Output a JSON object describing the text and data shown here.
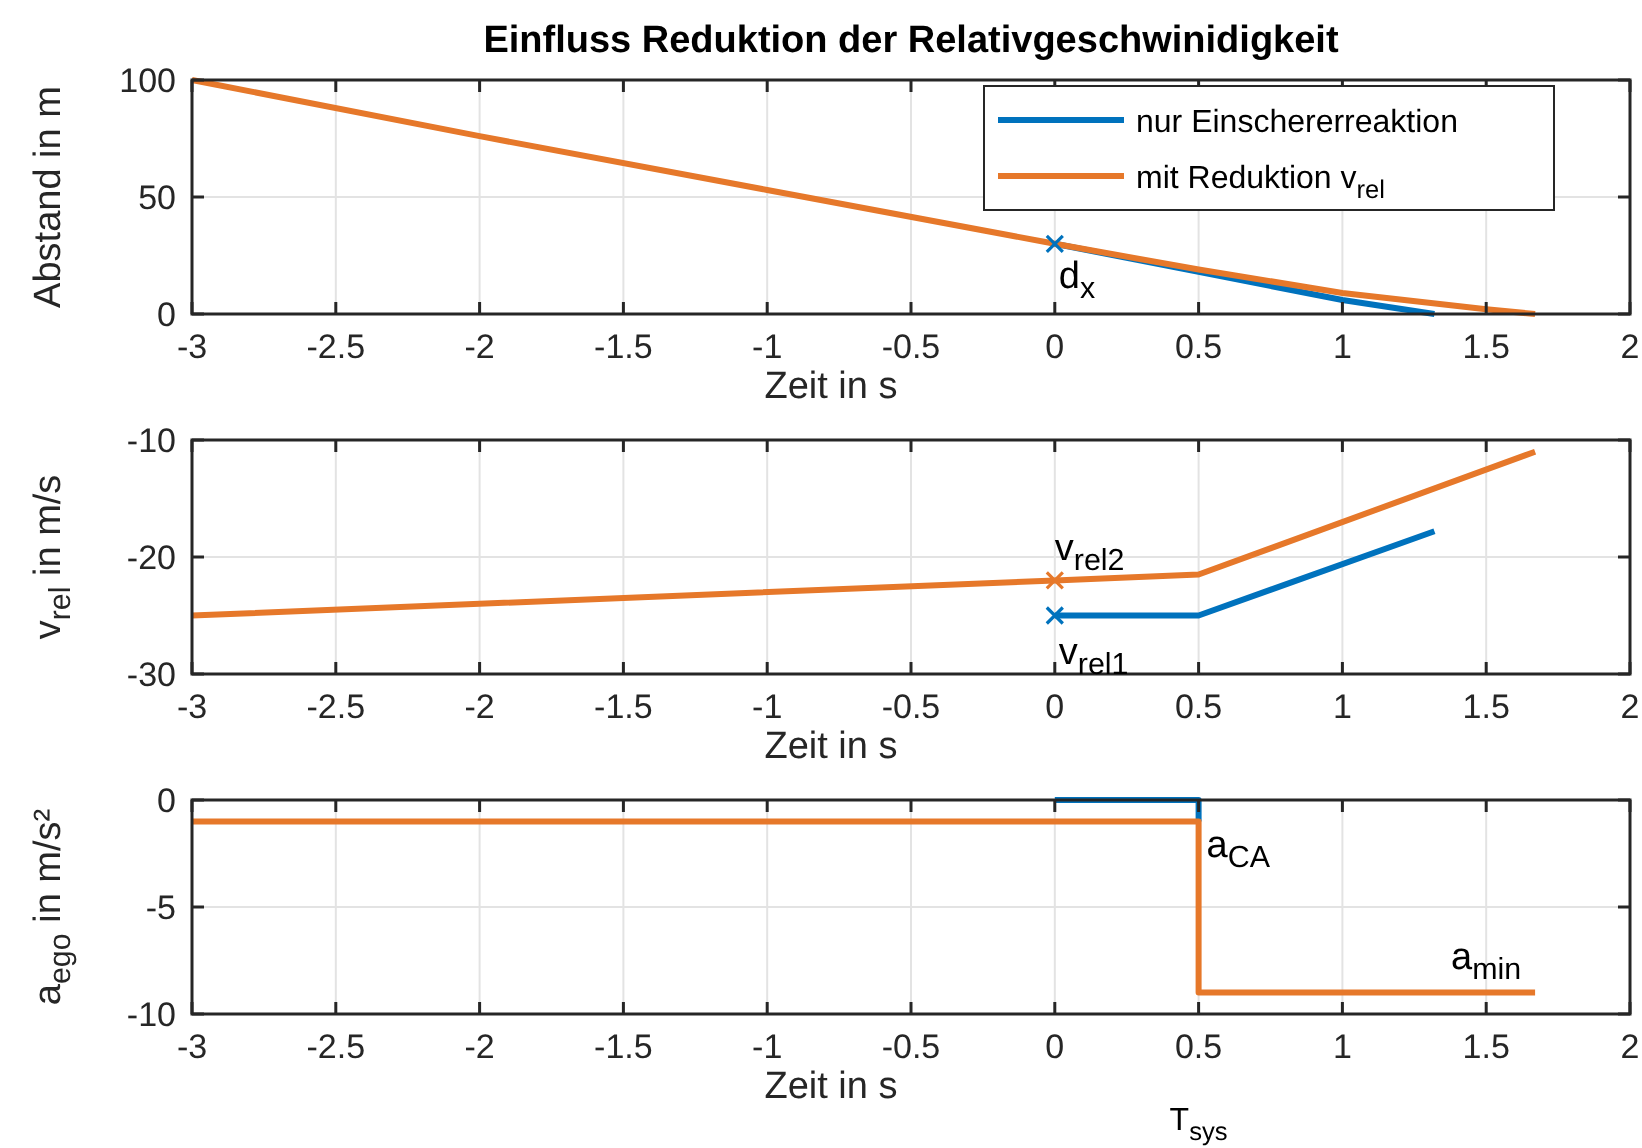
{
  "chart_data": [
    {
      "type": "line",
      "title": "Einfluss Reduktion der Relativgeschwinidigkeit",
      "xlabel": "Zeit in s",
      "ylabel": "Abstand in m",
      "xlim": [
        -3,
        2
      ],
      "xticks": [
        -3,
        -2.5,
        -2,
        -1.5,
        -1,
        -0.5,
        0,
        0.5,
        1,
        1.5,
        2
      ],
      "ylim": [
        0,
        100
      ],
      "yticks": [
        0,
        50,
        100
      ],
      "grid": true,
      "legend": "top right",
      "line_style": "solid",
      "marker": "none",
      "series": [
        {
          "name": "nur Einschererreaktion",
          "color": "#0072bd",
          "x": [
            0,
            0.5,
            1,
            1.32
          ],
          "values": [
            30,
            18,
            6,
            0
          ]
        },
        {
          "name": "mit Reduktion v$_{rel}$",
          "color": "#e6782a",
          "x": [
            -3,
            -2,
            -1,
            0,
            0.5,
            1,
            1.5,
            1.67
          ],
          "values": [
            100,
            76,
            53,
            30,
            19,
            9,
            2,
            0
          ]
        },
        {
          "type": "scatter",
          "marker": "cross",
          "color": "#0072bd",
          "x": [
            0
          ],
          "values": [
            30
          ]
        }
      ],
      "annotations": [
        {
          "text": "d$_{x}$",
          "x": 0,
          "y": 30
        }
      ]
    },
    {
      "type": "line",
      "xlabel": "Zeit in s",
      "ylabel": "v$_{rel}$ in m/s",
      "xlim": [
        -3,
        2
      ],
      "xticks": [
        -3,
        -2.5,
        -2,
        -1.5,
        -1,
        -0.5,
        0,
        0.5,
        1,
        1.5,
        2
      ],
      "ylim": [
        -30,
        -10
      ],
      "yticks": [
        -30,
        -20,
        -10
      ],
      "grid": true,
      "legend": false,
      "line_style": "solid",
      "marker": "none",
      "series": [
        {
          "color": "#0072bd",
          "x": [
            0,
            0.5,
            1.32
          ],
          "values": [
            -25,
            -25,
            -17.8
          ]
        },
        {
          "color": "#e6782a",
          "x": [
            -3,
            0,
            0.5,
            1.67
          ],
          "values": [
            -25,
            -22,
            -21.5,
            -11
          ]
        },
        {
          "type": "scatter",
          "marker": "cross",
          "color": "#e6782a",
          "x": [
            0
          ],
          "values": [
            -22
          ]
        },
        {
          "type": "scatter",
          "marker": "cross",
          "color": "#0072bd",
          "x": [
            0
          ],
          "values": [
            -25
          ]
        }
      ],
      "annotations": [
        {
          "text": "v$_{rel2}$",
          "x": 0,
          "y": -22
        },
        {
          "text": "v$_{rel1}$",
          "x": 0,
          "y": -25
        }
      ]
    },
    {
      "type": "line",
      "xlabel": "Zeit in s",
      "ylabel": "a$_{ego}$ in m/s²",
      "xlim": [
        -3,
        2
      ],
      "xticks": [
        -3,
        -2.5,
        -2,
        -1.5,
        -1,
        -0.5,
        0,
        0.5,
        1,
        1.5,
        2
      ],
      "ylim": [
        -10,
        0
      ],
      "yticks": [
        -10,
        -5,
        0
      ],
      "grid": true,
      "legend": false,
      "line_style": "solid",
      "marker": "none",
      "series": [
        {
          "color": "#0072bd",
          "x": [
            0,
            0.5,
            0.5
          ],
          "values": [
            0,
            0,
            -1
          ]
        },
        {
          "color": "#e6782a",
          "x": [
            -3,
            0.5,
            0.5,
            1.67
          ],
          "values": [
            -1,
            -1,
            -9,
            -9
          ]
        }
      ],
      "annotations": [
        {
          "text": "a$_{CA}$",
          "x": 0.5,
          "y": -1
        },
        {
          "text": "a$_{min}$",
          "x": 1.67,
          "y": -9
        },
        "T$_{sys}$"
      ]
    }
  ]
}
